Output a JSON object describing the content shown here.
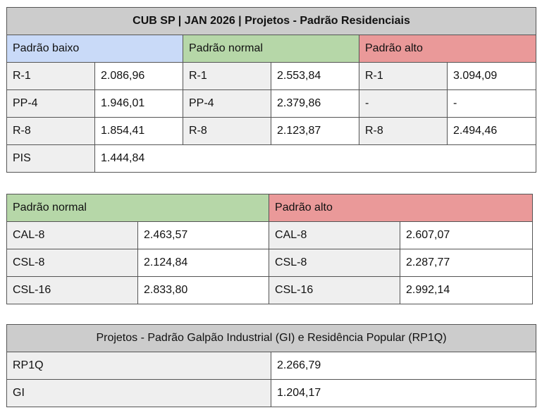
{
  "table1": {
    "title": "CUB SP | JAN 2026 | Projetos - Padrão Residenciais",
    "groups": {
      "low": "Padrão baixo",
      "normal": "Padrão normal",
      "high": "Padrão alto"
    },
    "rows": [
      {
        "low_label": "R-1",
        "low_value": "2.086,96",
        "normal_label": "R-1",
        "normal_value": "2.553,84",
        "high_label": "R-1",
        "high_value": "3.094,09"
      },
      {
        "low_label": "PP-4",
        "low_value": "1.946,01",
        "normal_label": "PP-4",
        "normal_value": "2.379,86",
        "high_label": "-",
        "high_value": "-"
      },
      {
        "low_label": "R-8",
        "low_value": "1.854,41",
        "normal_label": "R-8",
        "normal_value": "2.123,87",
        "high_label": "R-8",
        "high_value": "2.494,46"
      },
      {
        "low_label": "PIS",
        "low_value": "1.444,84"
      }
    ]
  },
  "table2": {
    "groups": {
      "normal": "Padrão normal",
      "high": "Padrão alto"
    },
    "rows": [
      {
        "normal_label": "CAL-8",
        "normal_value": "2.463,57",
        "high_label": "CAL-8",
        "high_value": "2.607,07"
      },
      {
        "normal_label": "CSL-8",
        "normal_value": "2.124,84",
        "high_label": "CSL-8",
        "high_value": "2.287,77"
      },
      {
        "normal_label": "CSL-16",
        "normal_value": "2.833,80",
        "high_label": "CSL-16",
        "high_value": "2.992,14"
      }
    ]
  },
  "table3": {
    "title": "Projetos - Padrão Galpão Industrial (GI) e Residência Popular (RP1Q)",
    "rows": [
      {
        "label": "RP1Q",
        "value": "2.266,79"
      },
      {
        "label": "GI",
        "value": "1.204,17"
      }
    ]
  },
  "colors": {
    "header": "#cccccc",
    "low": "#c9daf8",
    "normal": "#b6d7a8",
    "high": "#ea9999",
    "label": "#efefef"
  }
}
